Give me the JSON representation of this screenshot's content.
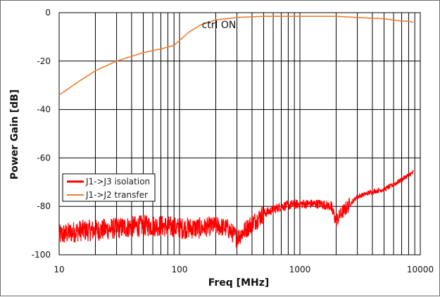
{
  "chart_data": {
    "type": "line",
    "title": "ctrl ON",
    "xlabel": "Freq [MHz]",
    "ylabel": "Power Gain [dB]",
    "xscale": "log",
    "xlim": [
      10,
      10000
    ],
    "ylim": [
      -100,
      0
    ],
    "x_ticks": [
      "10",
      "100",
      "1000",
      "10000"
    ],
    "y_ticks": [
      "0",
      "-20",
      "-40",
      "-60",
      "-80",
      "-100"
    ],
    "grid": true,
    "legend_position": "lower-left",
    "series": [
      {
        "name": "J1->J3 isolation",
        "color": "#ff0000",
        "x": [
          10,
          12,
          15,
          20,
          30,
          50,
          70,
          100,
          150,
          200,
          250,
          300,
          400,
          500,
          700,
          1000,
          1500,
          1800,
          2000,
          2200,
          2500,
          3000,
          4000,
          5000,
          6000,
          7000,
          8000,
          8800
        ],
        "y": [
          -92,
          -91,
          -90,
          -90,
          -89,
          -88,
          -88,
          -89,
          -89,
          -88,
          -89,
          -93,
          -87,
          -83,
          -80,
          -79,
          -79,
          -80,
          -86,
          -83,
          -80,
          -76,
          -74,
          -73,
          -71,
          -69,
          -67,
          -66
        ]
      },
      {
        "name": "J1->J2 transfer",
        "color": "#ed7d31",
        "x": [
          10,
          15,
          20,
          30,
          50,
          70,
          90,
          100,
          120,
          150,
          200,
          300,
          500,
          1000,
          2000,
          3000,
          5000,
          7000,
          8000,
          8800
        ],
        "y": [
          -34,
          -28,
          -24,
          -20,
          -16.5,
          -15,
          -13.5,
          -11.5,
          -8,
          -5,
          -3,
          -2,
          -1.5,
          -1.5,
          -1.5,
          -2,
          -2.5,
          -3.5,
          -3.5,
          -4
        ]
      }
    ]
  }
}
